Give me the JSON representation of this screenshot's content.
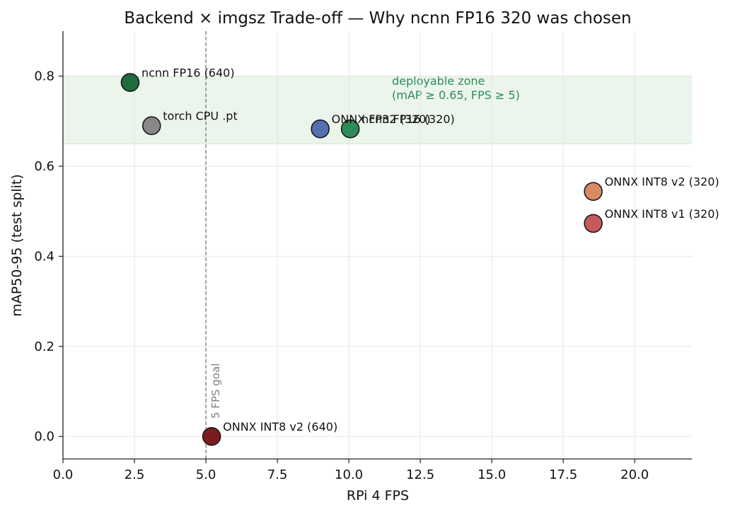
{
  "chart_data": {
    "type": "scatter",
    "title": "Backend × imgsz Trade-off — Why ncnn FP16 320 was chosen",
    "xlabel": "RPi 4 FPS",
    "ylabel": "mAP50-95 (test split)",
    "xlim": [
      0,
      22
    ],
    "ylim": [
      -0.05,
      0.9
    ],
    "xticks": [
      0.0,
      2.5,
      5.0,
      7.5,
      10.0,
      12.5,
      15.0,
      17.5,
      20.0
    ],
    "xtick_labels": [
      "0.0",
      "2.5",
      "5.0",
      "7.5",
      "10.0",
      "12.5",
      "15.0",
      "17.5",
      "20.0"
    ],
    "yticks": [
      0.0,
      0.2,
      0.4,
      0.6,
      0.8
    ],
    "ytick_labels": [
      "0.0",
      "0.2",
      "0.4",
      "0.6",
      "0.8"
    ],
    "grid": true,
    "points": [
      {
        "label": "ncnn FP16 (640)",
        "x": 2.35,
        "y": 0.786,
        "color": "#1e6b3c"
      },
      {
        "label": "torch CPU .pt",
        "x": 3.1,
        "y": 0.69,
        "color": "#888888"
      },
      {
        "label": "ONNX FP32 (320)",
        "x": 9.0,
        "y": 0.683,
        "color": "#5470b0"
      },
      {
        "label": "ncnn FP16 (320)",
        "x": 10.05,
        "y": 0.683,
        "color": "#2e8b57"
      },
      {
        "label": "ONNX INT8 v2 (320)",
        "x": 18.55,
        "y": 0.544,
        "color": "#d98a64"
      },
      {
        "label": "ONNX INT8 v1 (320)",
        "x": 18.55,
        "y": 0.473,
        "color": "#c65a5a"
      },
      {
        "label": "ONNX INT8 v2 (640)",
        "x": 5.2,
        "y": 0.0,
        "color": "#7c1c1c"
      }
    ],
    "zone": {
      "y_range": [
        0.65,
        0.8
      ],
      "label_line1": "deployable zone",
      "label_line2": "(mAP ≥ 0.65, FPS ≥ 5)",
      "fill": "#e6f3e6",
      "text_color": "#2e8b57"
    },
    "goal_line": {
      "x": 5.0,
      "label": "5 FPS goal",
      "color": "#808080"
    }
  }
}
